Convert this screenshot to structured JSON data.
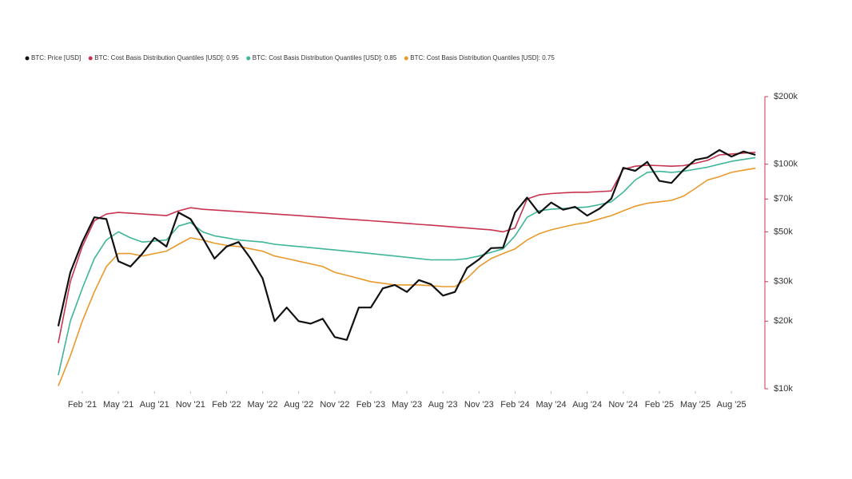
{
  "chart_data": {
    "type": "line",
    "x": [
      "2020-12",
      "2021-01",
      "2021-02",
      "2021-03",
      "2021-04",
      "2021-05",
      "2021-06",
      "2021-07",
      "2021-08",
      "2021-09",
      "2021-10",
      "2021-11",
      "2021-12",
      "2022-01",
      "2022-02",
      "2022-03",
      "2022-04",
      "2022-05",
      "2022-06",
      "2022-07",
      "2022-08",
      "2022-09",
      "2022-10",
      "2022-11",
      "2022-12",
      "2023-01",
      "2023-02",
      "2023-03",
      "2023-04",
      "2023-05",
      "2023-06",
      "2023-07",
      "2023-08",
      "2023-09",
      "2023-10",
      "2023-11",
      "2023-12",
      "2024-01",
      "2024-02",
      "2024-03",
      "2024-04",
      "2024-05",
      "2024-06",
      "2024-07",
      "2024-08",
      "2024-09",
      "2024-10",
      "2024-11",
      "2024-12",
      "2025-01",
      "2025-02",
      "2025-03",
      "2025-04",
      "2025-05",
      "2025-06",
      "2025-07",
      "2025-08",
      "2025-09",
      "2025-10"
    ],
    "series": [
      {
        "name": "BTC: Price [USD]",
        "color": "#111111",
        "values": [
          19000,
          33000,
          45000,
          58000,
          57000,
          37000,
          35000,
          40000,
          47000,
          43000,
          61000,
          57000,
          47000,
          38000,
          43000,
          45000,
          38000,
          31000,
          20000,
          23000,
          20000,
          19500,
          20500,
          17000,
          16500,
          23000,
          23000,
          28000,
          29000,
          27000,
          30500,
          29200,
          26000,
          27000,
          34500,
          37700,
          42300,
          42500,
          61000,
          71000,
          60600,
          67500,
          62700,
          64600,
          59000,
          63300,
          70200,
          96400,
          93400,
          102400,
          84300,
          82500,
          94200,
          104600,
          107100,
          115700,
          108200,
          114000,
          110000
        ]
      },
      {
        "name": "BTC: Cost Basis Distribution Quantiles [USD]: 0.95",
        "color": "#c8344f",
        "values": [
          16000,
          30000,
          43000,
          56000,
          60000,
          61000,
          60500,
          60000,
          59500,
          59000,
          62000,
          64000,
          63000,
          62500,
          62000,
          61500,
          61000,
          60500,
          60000,
          59500,
          59000,
          58500,
          58000,
          57500,
          57000,
          56500,
          56000,
          55500,
          55000,
          54500,
          54000,
          53500,
          53000,
          52500,
          52000,
          51500,
          51000,
          50000,
          52000,
          70000,
          73000,
          74000,
          74500,
          75000,
          75000,
          75500,
          76000,
          95000,
          98000,
          99000,
          98500,
          98000,
          98500,
          101000,
          104000,
          110000,
          111000,
          112000,
          113000
        ]
      },
      {
        "name": "BTC: Cost Basis Distribution Quantiles [USD]: 0.85",
        "color": "#3fb59a",
        "values": [
          11500,
          20000,
          28000,
          38000,
          46000,
          50000,
          47000,
          45000,
          45500,
          46000,
          53000,
          55000,
          50000,
          48000,
          47000,
          46000,
          45500,
          45000,
          44000,
          43500,
          43000,
          42500,
          42000,
          41500,
          41000,
          40500,
          40000,
          39500,
          39000,
          38500,
          38000,
          37500,
          37500,
          37500,
          38000,
          39000,
          40500,
          42000,
          48000,
          58000,
          62000,
          63000,
          63500,
          64000,
          64500,
          66000,
          68000,
          75000,
          85000,
          92000,
          93000,
          92000,
          93000,
          95000,
          97000,
          100000,
          103000,
          105000,
          107000
        ]
      },
      {
        "name": "BTC: Cost Basis Distribution Quantiles [USD]: 0.75",
        "color": "#e89a2c",
        "values": [
          10300,
          14000,
          20000,
          27000,
          35000,
          40000,
          40000,
          39000,
          40000,
          41000,
          44000,
          47000,
          46000,
          44500,
          43500,
          43000,
          42000,
          41000,
          39000,
          38000,
          37000,
          36000,
          35000,
          33000,
          32000,
          31000,
          30000,
          29500,
          29000,
          29000,
          29000,
          28800,
          28500,
          28500,
          31000,
          35000,
          38000,
          40000,
          42000,
          46000,
          49000,
          51000,
          52500,
          54000,
          55000,
          57000,
          59000,
          62000,
          65000,
          67000,
          68000,
          69000,
          72000,
          78000,
          85000,
          88000,
          92000,
          94000,
          96000
        ]
      }
    ],
    "ylim": [
      10000,
      200000
    ],
    "log_y": true,
    "yticks": [
      {
        "value": 10000,
        "label": "$10k"
      },
      {
        "value": 20000,
        "label": "$20k"
      },
      {
        "value": 30000,
        "label": "$30k"
      },
      {
        "value": 50000,
        "label": "$50k"
      },
      {
        "value": 70000,
        "label": "$70k"
      },
      {
        "value": 100000,
        "label": "$100k"
      },
      {
        "value": 200000,
        "label": "$200k"
      }
    ],
    "xticks": [
      {
        "value": "2021-02",
        "label": "Feb '21"
      },
      {
        "value": "2021-05",
        "label": "May '21"
      },
      {
        "value": "2021-08",
        "label": "Aug '21"
      },
      {
        "value": "2021-11",
        "label": "Nov '21"
      },
      {
        "value": "2022-02",
        "label": "Feb '22"
      },
      {
        "value": "2022-05",
        "label": "May '22"
      },
      {
        "value": "2022-08",
        "label": "Aug '22"
      },
      {
        "value": "2022-11",
        "label": "Nov '22"
      },
      {
        "value": "2023-02",
        "label": "Feb '23"
      },
      {
        "value": "2023-05",
        "label": "May '23"
      },
      {
        "value": "2023-08",
        "label": "Aug '23"
      },
      {
        "value": "2023-11",
        "label": "Nov '23"
      },
      {
        "value": "2024-02",
        "label": "Feb '24"
      },
      {
        "value": "2024-05",
        "label": "May '24"
      },
      {
        "value": "2024-08",
        "label": "Aug '24"
      },
      {
        "value": "2024-11",
        "label": "Nov '24"
      },
      {
        "value": "2025-02",
        "label": "Feb '25"
      },
      {
        "value": "2025-05",
        "label": "May '25"
      },
      {
        "value": "2025-08",
        "label": "Aug '25"
      }
    ]
  }
}
